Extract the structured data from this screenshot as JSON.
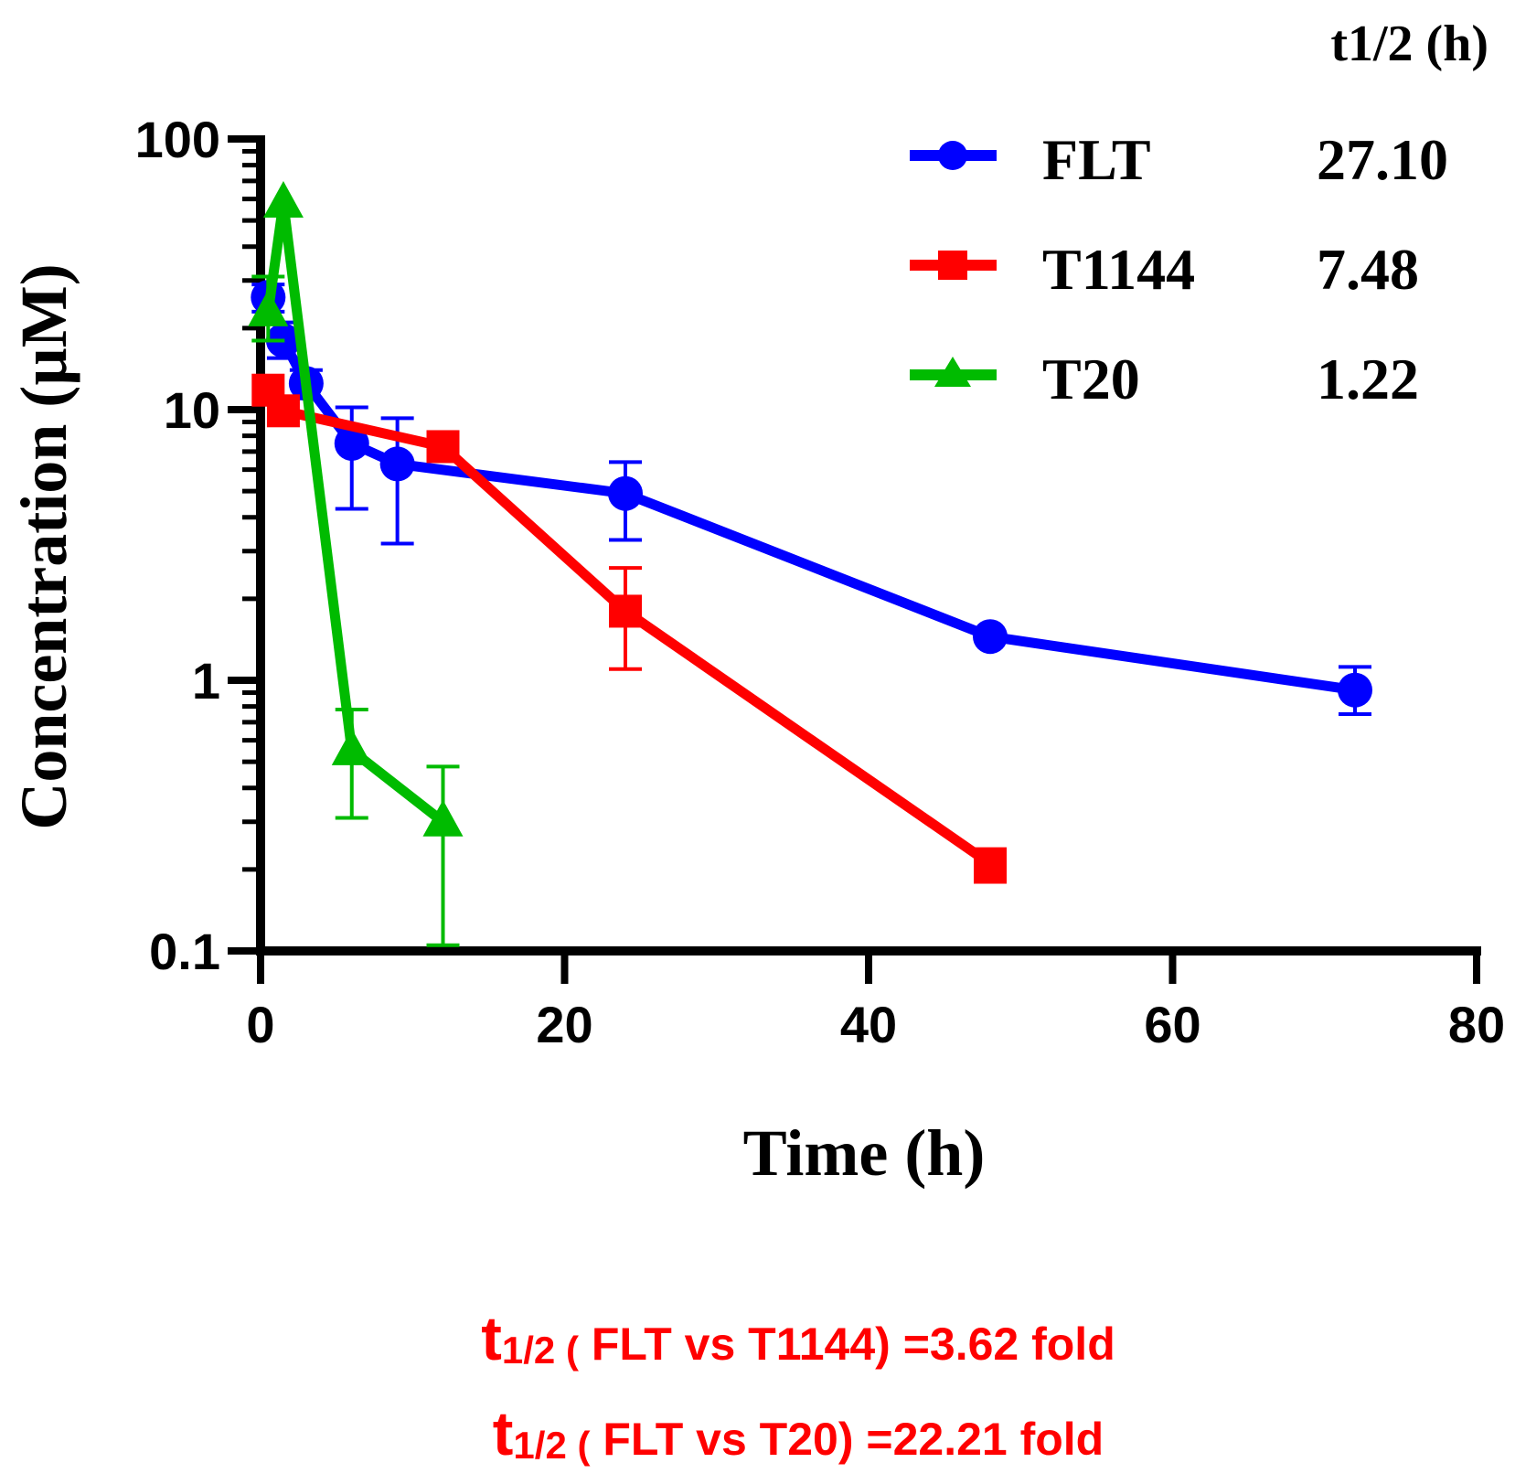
{
  "chart_data": {
    "type": "line",
    "title": "",
    "xlabel": "Time (h)",
    "ylabel": "Concentration (µM)",
    "xlim": [
      0,
      80
    ],
    "ylim": [
      0.1,
      100
    ],
    "yscale": "log",
    "x_ticks": [
      0,
      20,
      40,
      60,
      80
    ],
    "x_tick_labels": [
      "0",
      "20",
      "40",
      "60",
      "80"
    ],
    "y_ticks": [
      0.1,
      1,
      10,
      100
    ],
    "y_tick_labels": [
      "0.1",
      "1",
      "10",
      "100"
    ],
    "grid": false,
    "legend_position": "top-right",
    "legend_header": "t1/2 (h)",
    "series": [
      {
        "name": "FLT",
        "half_life": "27.10",
        "color": "#0000ff",
        "marker": "circle",
        "x": [
          0.5,
          1.5,
          3,
          6,
          9,
          24,
          48,
          72
        ],
        "y": [
          26,
          18,
          12.5,
          7.5,
          6.3,
          4.9,
          1.45,
          0.92
        ],
        "err_upper": [
          29,
          21,
          14,
          10.2,
          9.3,
          6.4,
          null,
          1.12
        ],
        "err_lower": [
          23,
          15.5,
          11,
          4.3,
          3.2,
          3.3,
          null,
          0.75
        ]
      },
      {
        "name": "T1144",
        "half_life": "7.48",
        "color": "#ff0000",
        "marker": "square",
        "x": [
          0.5,
          1.5,
          12,
          24,
          48
        ],
        "y": [
          11.8,
          9.9,
          7.3,
          1.8,
          0.21
        ],
        "err_upper": [
          null,
          null,
          null,
          2.6,
          0.22
        ],
        "err_lower": [
          null,
          null,
          null,
          1.1,
          0.18
        ]
      },
      {
        "name": "T20",
        "half_life": "1.22",
        "color": "#00bb00",
        "marker": "triangle",
        "x": [
          0.5,
          1.5,
          6,
          12
        ],
        "y": [
          23,
          58,
          0.55,
          0.3
        ],
        "err_upper": [
          31,
          null,
          0.78,
          0.48
        ],
        "err_lower": [
          18,
          null,
          0.31,
          0.105
        ]
      }
    ]
  },
  "annotations": {
    "line1": {
      "prefix": "t",
      "subscript": "1/2 (",
      "text": " FLT vs T1144) =3.62 fold"
    },
    "line2": {
      "prefix": "t",
      "subscript": "1/2 (",
      "text": " FLT vs T20) =22.21 fold"
    },
    "color": "#ff0000"
  }
}
